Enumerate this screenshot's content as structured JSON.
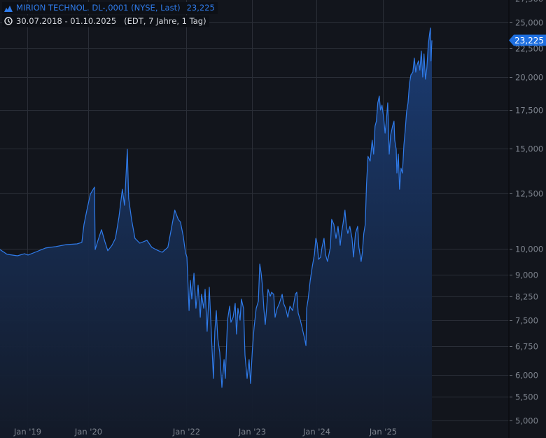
{
  "header": {
    "title": "MIRION TECHNOL. DL-,0001 (NYSE, Last)",
    "last_value": "23,225",
    "date_range": "30.07.2018 - 01.10.2025",
    "details": "(EDT, 7 Jahre, 1 Tag)",
    "icons": {
      "series": "mountain-chart-icon",
      "time": "clock-icon"
    }
  },
  "colors": {
    "line": "#2f7bea",
    "accent": "#1e6fe0",
    "background": "#12151c",
    "grid": "#2a2e37",
    "axis_text": "#7f858f"
  },
  "chart_data": {
    "type": "area",
    "title": "MIRION TECHNOL. DL-,0001 (NYSE, Last)",
    "xlabel": "",
    "ylabel": "",
    "y_scale": "log",
    "ylim": [
      5000,
      27500
    ],
    "grid": true,
    "legend": "top-left",
    "x_range": [
      "2018-07-30",
      "2025-10-01"
    ],
    "y_ticks": [
      "5,000",
      "5,500",
      "6,000",
      "6,750",
      "7,500",
      "8,250",
      "9,000",
      "10,000",
      "12,500",
      "15,000",
      "17,500",
      "20,000",
      "22,500",
      "25,000",
      "27,500"
    ],
    "y_tick_values": [
      5000,
      5500,
      6000,
      6750,
      7500,
      8250,
      9000,
      10000,
      12500,
      15000,
      17500,
      20000,
      22500,
      25000,
      27500
    ],
    "x_ticks": [
      {
        "label": "Jan '19",
        "date": "2019-01-01"
      },
      {
        "label": "Jan '20",
        "date": "2020-01-01"
      },
      {
        "label": "Jan '22",
        "date": "2022-01-01"
      },
      {
        "label": "Jan '23",
        "date": "2023-01-01"
      },
      {
        "label": "Jan '24",
        "date": "2024-01-01"
      },
      {
        "label": "Jan '25",
        "date": "2025-01-01"
      }
    ],
    "last_price": 23225,
    "last_price_label": "23,225",
    "series": [
      {
        "points": [
          [
            "2018-07-30",
            9970
          ],
          [
            "2018-09-08",
            9780
          ],
          [
            "2018-11-06",
            9720
          ],
          [
            "2018-12-16",
            9800
          ],
          [
            "2019-01-05",
            9750
          ],
          [
            "2019-02-16",
            9860
          ],
          [
            "2019-04-20",
            10030
          ],
          [
            "2019-06-22",
            10090
          ],
          [
            "2019-08-24",
            10170
          ],
          [
            "2019-10-26",
            10200
          ],
          [
            "2019-11-24",
            10260
          ],
          [
            "2019-12-07",
            11040
          ],
          [
            "2019-12-24",
            11690
          ],
          [
            "2020-01-17",
            12470
          ],
          [
            "2020-02-17",
            12830
          ],
          [
            "2020-02-22",
            9970
          ],
          [
            "2020-03-14",
            10350
          ],
          [
            "2020-04-09",
            10800
          ],
          [
            "2020-05-05",
            10290
          ],
          [
            "2020-05-26",
            9920
          ],
          [
            "2020-06-26",
            10140
          ],
          [
            "2020-07-22",
            10430
          ],
          [
            "2020-08-17",
            11360
          ],
          [
            "2020-09-12",
            12720
          ],
          [
            "2020-09-28",
            11920
          ],
          [
            "2020-10-19",
            14950
          ],
          [
            "2020-10-29",
            12260
          ],
          [
            "2020-11-19",
            11270
          ],
          [
            "2020-12-15",
            10430
          ],
          [
            "2021-01-20",
            10230
          ],
          [
            "2021-03-14",
            10350
          ],
          [
            "2021-04-19",
            10060
          ],
          [
            "2021-05-31",
            9940
          ],
          [
            "2021-07-06",
            9860
          ],
          [
            "2021-08-17",
            10060
          ],
          [
            "2021-09-12",
            10830
          ],
          [
            "2021-10-08",
            11690
          ],
          [
            "2021-11-03",
            11260
          ],
          [
            "2021-11-19",
            11140
          ],
          [
            "2021-12-10",
            10520
          ],
          [
            "2021-12-26",
            9860
          ],
          [
            "2022-01-05",
            9670
          ],
          [
            "2022-01-17",
            7790
          ],
          [
            "2022-01-24",
            8800
          ],
          [
            "2022-02-01",
            8160
          ],
          [
            "2022-02-13",
            9060
          ],
          [
            "2022-02-24",
            7860
          ],
          [
            "2022-03-08",
            8630
          ],
          [
            "2022-03-20",
            7580
          ],
          [
            "2022-03-27",
            8320
          ],
          [
            "2022-04-08",
            7860
          ],
          [
            "2022-04-16",
            8490
          ],
          [
            "2022-04-27",
            7160
          ],
          [
            "2022-05-09",
            8560
          ],
          [
            "2022-05-21",
            7020
          ],
          [
            "2022-06-01",
            5920
          ],
          [
            "2022-06-09",
            7160
          ],
          [
            "2022-06-17",
            7790
          ],
          [
            "2022-06-25",
            6960
          ],
          [
            "2022-07-06",
            6580
          ],
          [
            "2022-07-18",
            5710
          ],
          [
            "2022-07-30",
            6390
          ],
          [
            "2022-08-06",
            5920
          ],
          [
            "2022-08-18",
            7490
          ],
          [
            "2022-08-30",
            7930
          ],
          [
            "2022-09-06",
            7430
          ],
          [
            "2022-09-18",
            7580
          ],
          [
            "2022-09-30",
            8020
          ],
          [
            "2022-10-07",
            7080
          ],
          [
            "2022-10-15",
            7860
          ],
          [
            "2022-10-27",
            7490
          ],
          [
            "2022-11-03",
            8160
          ],
          [
            "2022-11-15",
            7860
          ],
          [
            "2022-11-23",
            6500
          ],
          [
            "2022-12-05",
            5920
          ],
          [
            "2022-12-16",
            6390
          ],
          [
            "2022-12-24",
            5800
          ],
          [
            "2023-01-03",
            6630
          ],
          [
            "2023-01-13",
            7280
          ],
          [
            "2023-01-25",
            7860
          ],
          [
            "2023-02-06",
            8090
          ],
          [
            "2023-02-14",
            9400
          ],
          [
            "2023-02-22",
            9060
          ],
          [
            "2023-03-02",
            8560
          ],
          [
            "2023-03-09",
            7860
          ],
          [
            "2023-03-17",
            7360
          ],
          [
            "2023-03-25",
            7860
          ],
          [
            "2023-04-02",
            8490
          ],
          [
            "2023-04-14",
            8250
          ],
          [
            "2023-04-22",
            8390
          ],
          [
            "2023-05-04",
            8320
          ],
          [
            "2023-05-12",
            7580
          ],
          [
            "2023-05-24",
            7860
          ],
          [
            "2023-06-05",
            8020
          ],
          [
            "2023-06-21",
            8320
          ],
          [
            "2023-06-29",
            8020
          ],
          [
            "2023-07-11",
            7860
          ],
          [
            "2023-07-23",
            7580
          ],
          [
            "2023-08-04",
            7930
          ],
          [
            "2023-08-19",
            7790
          ],
          [
            "2023-09-04",
            8320
          ],
          [
            "2023-09-12",
            8390
          ],
          [
            "2023-09-20",
            7710
          ],
          [
            "2023-10-02",
            7490
          ],
          [
            "2023-10-14",
            7220
          ],
          [
            "2023-10-26",
            6960
          ],
          [
            "2023-11-03",
            6760
          ],
          [
            "2023-11-07",
            7860
          ],
          [
            "2023-11-15",
            8160
          ],
          [
            "2023-11-27",
            8800
          ],
          [
            "2023-12-09",
            9320
          ],
          [
            "2023-12-21",
            9780
          ],
          [
            "2023-12-29",
            10430
          ],
          [
            "2024-01-05",
            10230
          ],
          [
            "2024-01-13",
            9580
          ],
          [
            "2024-01-24",
            9670
          ],
          [
            "2024-02-01",
            10060
          ],
          [
            "2024-02-12",
            10430
          ],
          [
            "2024-02-20",
            9780
          ],
          [
            "2024-03-02",
            9500
          ],
          [
            "2024-03-18",
            10060
          ],
          [
            "2024-03-25",
            11260
          ],
          [
            "2024-04-06",
            11040
          ],
          [
            "2024-04-18",
            10430
          ],
          [
            "2024-04-29",
            10950
          ],
          [
            "2024-05-11",
            10140
          ],
          [
            "2024-05-18",
            10640
          ],
          [
            "2024-05-26",
            11040
          ],
          [
            "2024-06-06",
            11690
          ],
          [
            "2024-06-14",
            10950
          ],
          [
            "2024-06-22",
            10640
          ],
          [
            "2024-07-03",
            10950
          ],
          [
            "2024-07-15",
            10430
          ],
          [
            "2024-07-23",
            9670
          ],
          [
            "2024-08-03",
            10640
          ],
          [
            "2024-08-15",
            10950
          ],
          [
            "2024-08-22",
            10060
          ],
          [
            "2024-09-03",
            9500
          ],
          [
            "2024-09-10",
            9860
          ],
          [
            "2024-09-18",
            10640
          ],
          [
            "2024-09-26",
            11040
          ],
          [
            "2024-10-03",
            12980
          ],
          [
            "2024-10-11",
            14530
          ],
          [
            "2024-10-23",
            14250
          ],
          [
            "2024-11-03",
            15510
          ],
          [
            "2024-11-11",
            14660
          ],
          [
            "2024-11-19",
            16420
          ],
          [
            "2024-11-26",
            16750
          ],
          [
            "2024-12-04",
            18030
          ],
          [
            "2024-12-12",
            18540
          ],
          [
            "2024-12-19",
            17520
          ],
          [
            "2024-12-27",
            17870
          ],
          [
            "2025-01-05",
            17030
          ],
          [
            "2025-01-13",
            15960
          ],
          [
            "2025-01-20",
            16750
          ],
          [
            "2025-01-28",
            18030
          ],
          [
            "2025-02-05",
            14660
          ],
          [
            "2025-02-13",
            15820
          ],
          [
            "2025-02-24",
            16420
          ],
          [
            "2025-03-04",
            16750
          ],
          [
            "2025-03-08",
            15510
          ],
          [
            "2025-03-16",
            14950
          ],
          [
            "2025-03-20",
            13580
          ],
          [
            "2025-03-28",
            14660
          ],
          [
            "2025-04-04",
            12720
          ],
          [
            "2025-04-12",
            13850
          ],
          [
            "2025-04-20",
            13580
          ],
          [
            "2025-04-28",
            15210
          ],
          [
            "2025-05-05",
            16100
          ],
          [
            "2025-05-13",
            17380
          ],
          [
            "2025-05-21",
            18030
          ],
          [
            "2025-05-29",
            19460
          ],
          [
            "2025-06-06",
            20190
          ],
          [
            "2025-06-17",
            20420
          ],
          [
            "2025-06-25",
            21610
          ],
          [
            "2025-07-03",
            20420
          ],
          [
            "2025-07-10",
            21010
          ],
          [
            "2025-07-18",
            21370
          ],
          [
            "2025-07-26",
            20590
          ],
          [
            "2025-08-03",
            22230
          ],
          [
            "2025-08-11",
            20020
          ],
          [
            "2025-08-18",
            21980
          ],
          [
            "2025-08-26",
            19850
          ],
          [
            "2025-09-03",
            20770
          ],
          [
            "2025-09-11",
            22870
          ],
          [
            "2025-09-19",
            23930
          ],
          [
            "2025-09-23",
            24410
          ],
          [
            "2025-09-26",
            21370
          ],
          [
            "2025-10-01",
            23225
          ]
        ]
      }
    ]
  }
}
